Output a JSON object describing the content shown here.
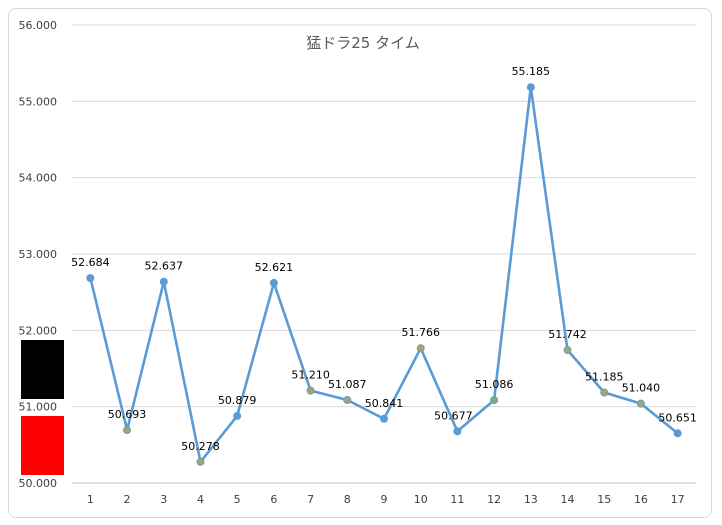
{
  "chart_data": {
    "type": "line",
    "title": "猛ドラ25 タイム",
    "categories": [
      "1",
      "2",
      "3",
      "4",
      "5",
      "6",
      "7",
      "8",
      "9",
      "10",
      "11",
      "12",
      "13",
      "14",
      "15",
      "16",
      "17"
    ],
    "series": [
      {
        "values": [
          52.684,
          50.693,
          52.637,
          50.278,
          50.879,
          52.621,
          51.21,
          51.087,
          50.841,
          51.766,
          50.677,
          51.086,
          55.185,
          51.742,
          51.185,
          51.04,
          50.651
        ],
        "color": "#5b9bd5",
        "data_labels": [
          "52.684",
          "50.693",
          "52.637",
          "50.278",
          "50.879",
          "52.621",
          "51.210",
          "51.087",
          "50.841",
          "51.766",
          "50.677",
          "51.086",
          "55.185",
          "51.742",
          "51.185",
          "51.040",
          "50.651"
        ]
      }
    ],
    "ylim": [
      50,
      56
    ],
    "ytick_labels": [
      "50.000",
      "51.000",
      "52.000",
      "53.000",
      "54.000",
      "55.000",
      "56.000"
    ],
    "grid": true,
    "point_colors": [
      "#5b9bd5",
      "#a5a56a",
      "#5b9bd5",
      "#a5a56a",
      "#5b9bd5",
      "#5b9bd5",
      "#a5a56a",
      "#a5a56a",
      "#5b9bd5",
      "#a5a56a",
      "#5b9bd5",
      "#7fae6a",
      "#5b9bd5",
      "#a5a56a",
      "#a5a56a",
      "#a5a56a",
      "#5b9bd5"
    ],
    "overlay_blocks": {
      "upper_color": "#000000",
      "lower_color": "#ff0000"
    }
  }
}
